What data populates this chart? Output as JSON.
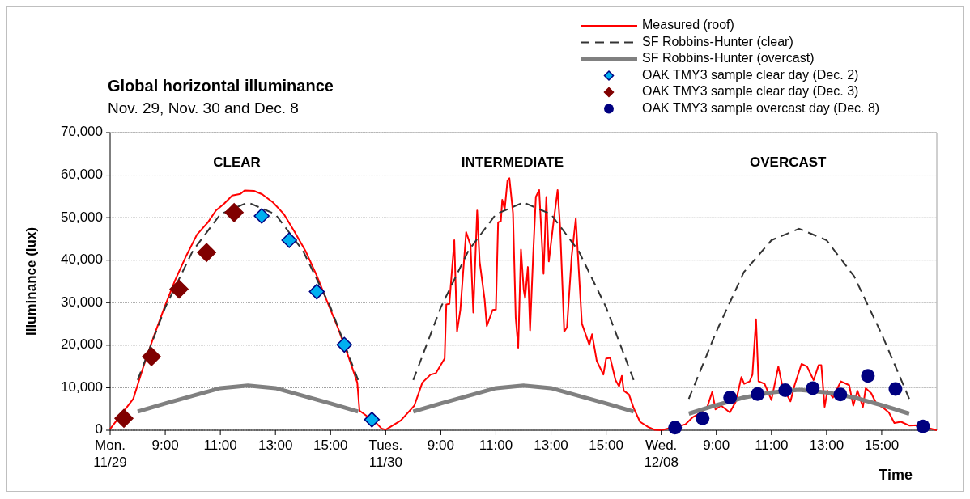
{
  "chart_data": [
    {
      "type": "line",
      "title": "Global horizontal illuminance",
      "subtitle": "Nov. 29, Nov. 30 and Dec. 8",
      "ylabel": "Illuminance (lux)",
      "xlim": [
        7,
        17
      ],
      "ylim": [
        0,
        70000
      ],
      "xticks": [
        {
          "value": 7,
          "label": "Mon.\n11/29"
        },
        {
          "value": 9,
          "label": "9:00"
        },
        {
          "value": 11,
          "label": "11:00"
        },
        {
          "value": 13,
          "label": "13:00"
        },
        {
          "value": 15,
          "label": "15:00"
        }
      ],
      "yticks": [
        0,
        {
          "value": 10000,
          "label": "10,000"
        },
        {
          "value": 20000,
          "label": "20,000"
        },
        {
          "value": 30000,
          "label": "30,000"
        },
        {
          "value": 40000,
          "label": "40,000"
        },
        {
          "value": 50000,
          "label": "50,000"
        },
        {
          "value": 60000,
          "label": "60,000"
        },
        {
          "value": 70000,
          "label": "70,000"
        }
      ],
      "grid": "y",
      "legend": "top right",
      "annotations": [
        "CLEAR"
      ],
      "series": [
        {
          "name": "Measured (roof)",
          "color": "#ff0000",
          "line_style": "solid",
          "x": [
            7.0,
            7.84,
            8.18,
            8.58,
            8.97,
            9.36,
            9.76,
            10.15,
            10.55,
            10.84,
            11.14,
            11.43,
            11.73,
            11.88,
            12.22,
            12.52,
            12.91,
            13.31,
            13.7,
            14.09,
            14.49,
            14.88,
            15.28,
            15.67,
            15.97,
            16.05,
            16.66,
            16.85,
            17.0
          ],
          "values": [
            300,
            7400,
            14400,
            22000,
            28900,
            35300,
            41000,
            46000,
            48900,
            51700,
            53300,
            55200,
            55600,
            56400,
            56300,
            55500,
            53600,
            50800,
            46600,
            42200,
            36500,
            30200,
            23900,
            16900,
            11200,
            4600,
            1700,
            400,
            100
          ]
        },
        {
          "name": "SF Robbins-Hunter (clear)",
          "color": "#333333",
          "line_style": "dashed",
          "x": [
            8,
            9,
            10,
            11,
            12,
            13,
            14,
            15,
            16
          ],
          "values": [
            11800,
            28900,
            42200,
            50800,
            53600,
            50800,
            42200,
            28900,
            11800
          ]
        },
        {
          "name": "SF Robbins-Hunter (overcast)",
          "color": "#808080",
          "line_style": "solid",
          "x": [
            8,
            9,
            10,
            11,
            12,
            13,
            14,
            15,
            16
          ],
          "values": [
            4400,
            6300,
            8100,
            9900,
            10500,
            9900,
            8100,
            6300,
            4400
          ]
        },
        {
          "name": "OAK TMY3 sample clear day (Dec. 2)",
          "type": "scatter",
          "color": "#00b0f0",
          "marker": "diamond",
          "x": [
            12.5,
            13.5,
            14.5,
            15.5,
            16.5
          ],
          "values": [
            50400,
            44700,
            32600,
            20100,
            2500
          ]
        },
        {
          "name": "OAK TMY3 sample clear day (Dec. 3)",
          "type": "scatter",
          "color": "#800000",
          "marker": "diamond",
          "x": [
            7.5,
            8.5,
            9.5,
            10.5,
            11.5
          ],
          "values": [
            2800,
            17300,
            33200,
            41800,
            51200
          ]
        }
      ]
    },
    {
      "type": "line",
      "xlim": [
        7,
        17
      ],
      "ylim": [
        0,
        70000
      ],
      "tick_labels": "x",
      "xticks": [
        {
          "value": 7,
          "label": "Tues.\n11/30"
        },
        {
          "value": 9,
          "label": "9:00"
        },
        {
          "value": 11,
          "label": "11:00"
        },
        {
          "value": 13,
          "label": "13:00"
        },
        {
          "value": 15,
          "label": "15:00"
        }
      ],
      "yticks": [
        0,
        10000,
        20000,
        30000,
        40000,
        50000,
        60000,
        70000
      ],
      "grid": "y",
      "annotations": [
        "INTERMEDIATE"
      ],
      "series": [
        {
          "color": "#ff0000",
          "line_style": "solid",
          "x": [
            7.0,
            7.55,
            8.04,
            8.33,
            8.63,
            8.82,
            9.14,
            9.2,
            9.31,
            9.49,
            9.59,
            9.71,
            9.92,
            10.08,
            10.18,
            10.32,
            10.41,
            10.59,
            10.67,
            10.88,
            11.0,
            11.08,
            11.18,
            11.23,
            11.32,
            11.42,
            11.49,
            11.62,
            11.72,
            11.81,
            11.91,
            12.01,
            12.06,
            12.16,
            12.24,
            12.35,
            12.45,
            12.57,
            12.73,
            12.83,
            12.92,
            13.09,
            13.24,
            13.33,
            13.48,
            13.58,
            13.75,
            13.9,
            14.12,
            14.39,
            14.49,
            14.66,
            14.9,
            15.0,
            15.15,
            15.34,
            15.47,
            15.57,
            15.64,
            15.83,
            16.0,
            16.23,
            16.52,
            16.76,
            17.0
          ],
          "values": [
            100,
            2300,
            5800,
            11200,
            13100,
            13400,
            16900,
            29600,
            29700,
            44700,
            23200,
            28300,
            46600,
            43500,
            27700,
            51700,
            39700,
            30800,
            24500,
            28300,
            28400,
            48900,
            49200,
            54200,
            52000,
            58700,
            59300,
            51100,
            26400,
            19400,
            42500,
            33000,
            31100,
            38400,
            23500,
            40900,
            54900,
            56500,
            36800,
            54900,
            39700,
            48900,
            56500,
            47900,
            23200,
            24200,
            40900,
            49800,
            25100,
            20100,
            22600,
            16300,
            13100,
            16900,
            17000,
            11800,
            10300,
            12800,
            9300,
            8400,
            5200,
            2000,
            800,
            100,
            0
          ]
        },
        {
          "color": "#333333",
          "line_style": "dashed",
          "x": [
            8,
            9,
            10,
            11,
            12,
            13,
            14,
            15,
            16
          ],
          "values": [
            11800,
            28900,
            42200,
            50800,
            53600,
            50800,
            42200,
            28900,
            11800
          ]
        },
        {
          "color": "#808080",
          "line_style": "solid",
          "x": [
            8,
            9,
            10,
            11,
            12,
            13,
            14,
            15,
            16
          ],
          "values": [
            4400,
            6300,
            8100,
            9900,
            10500,
            9900,
            8100,
            6300,
            4400
          ]
        }
      ]
    },
    {
      "type": "line",
      "xlabel": "Time",
      "xlim": [
        7,
        17
      ],
      "ylim": [
        0,
        70000
      ],
      "tick_labels": "x",
      "xticks": [
        {
          "value": 7,
          "label": "Wed.\n12/08"
        },
        {
          "value": 9,
          "label": "9:00"
        },
        {
          "value": 11,
          "label": "11:00"
        },
        {
          "value": 13,
          "label": "13:00"
        },
        {
          "value": 15,
          "label": "15:00"
        }
      ],
      "yticks": [
        0,
        10000,
        20000,
        30000,
        40000,
        50000,
        60000,
        70000
      ],
      "grid": "y",
      "annotations": [
        "OVERCAST"
      ],
      "series": [
        {
          "color": "#ff0000",
          "line_style": "solid",
          "x": [
            7.0,
            7.88,
            8.13,
            8.38,
            8.67,
            8.85,
            8.97,
            9.17,
            9.49,
            9.71,
            9.91,
            10.01,
            10.21,
            10.31,
            10.44,
            10.53,
            10.75,
            11.0,
            11.25,
            11.4,
            11.69,
            11.84,
            12.09,
            12.29,
            12.53,
            12.71,
            12.81,
            12.93,
            13.03,
            13.23,
            13.52,
            13.82,
            13.97,
            14.12,
            14.32,
            14.42,
            14.62,
            14.82,
            15.01,
            15.26,
            15.46,
            15.7,
            16.0,
            16.3,
            17.0
          ],
          "values": [
            0,
            1400,
            3000,
            3900,
            5500,
            9000,
            4900,
            5800,
            4200,
            6800,
            12500,
            10900,
            11500,
            13100,
            26100,
            11500,
            10900,
            7100,
            15000,
            10300,
            6800,
            10600,
            15600,
            15000,
            11800,
            15300,
            15300,
            5500,
            9300,
            7700,
            11500,
            10600,
            5800,
            9300,
            5500,
            9900,
            8700,
            6100,
            5500,
            4200,
            1700,
            2000,
            1100,
            1200,
            0
          ]
        },
        {
          "color": "#333333",
          "line_style": "dashed",
          "x": [
            8,
            9,
            10,
            11,
            12,
            13,
            14,
            15,
            16
          ],
          "values": [
            7400,
            23200,
            37200,
            44700,
            47400,
            44700,
            36200,
            22600,
            7400
          ]
        },
        {
          "color": "#808080",
          "line_style": "solid",
          "x": [
            8,
            9,
            10,
            11,
            12,
            13,
            14,
            15,
            16
          ],
          "values": [
            3900,
            5900,
            7700,
            8900,
            9500,
            8900,
            7700,
            5900,
            3900
          ]
        },
        {
          "name": "OAK TMY3 sample overcast day (Dec. 8)",
          "type": "scatter",
          "color": "#000080",
          "marker": "circle",
          "x": [
            7.5,
            8.5,
            9.5,
            10.5,
            11.5,
            12.5,
            13.5,
            14.5,
            15.5,
            16.5
          ],
          "values": [
            600,
            2800,
            7700,
            8500,
            9400,
            9900,
            8400,
            12800,
            9700,
            900
          ]
        }
      ]
    }
  ]
}
